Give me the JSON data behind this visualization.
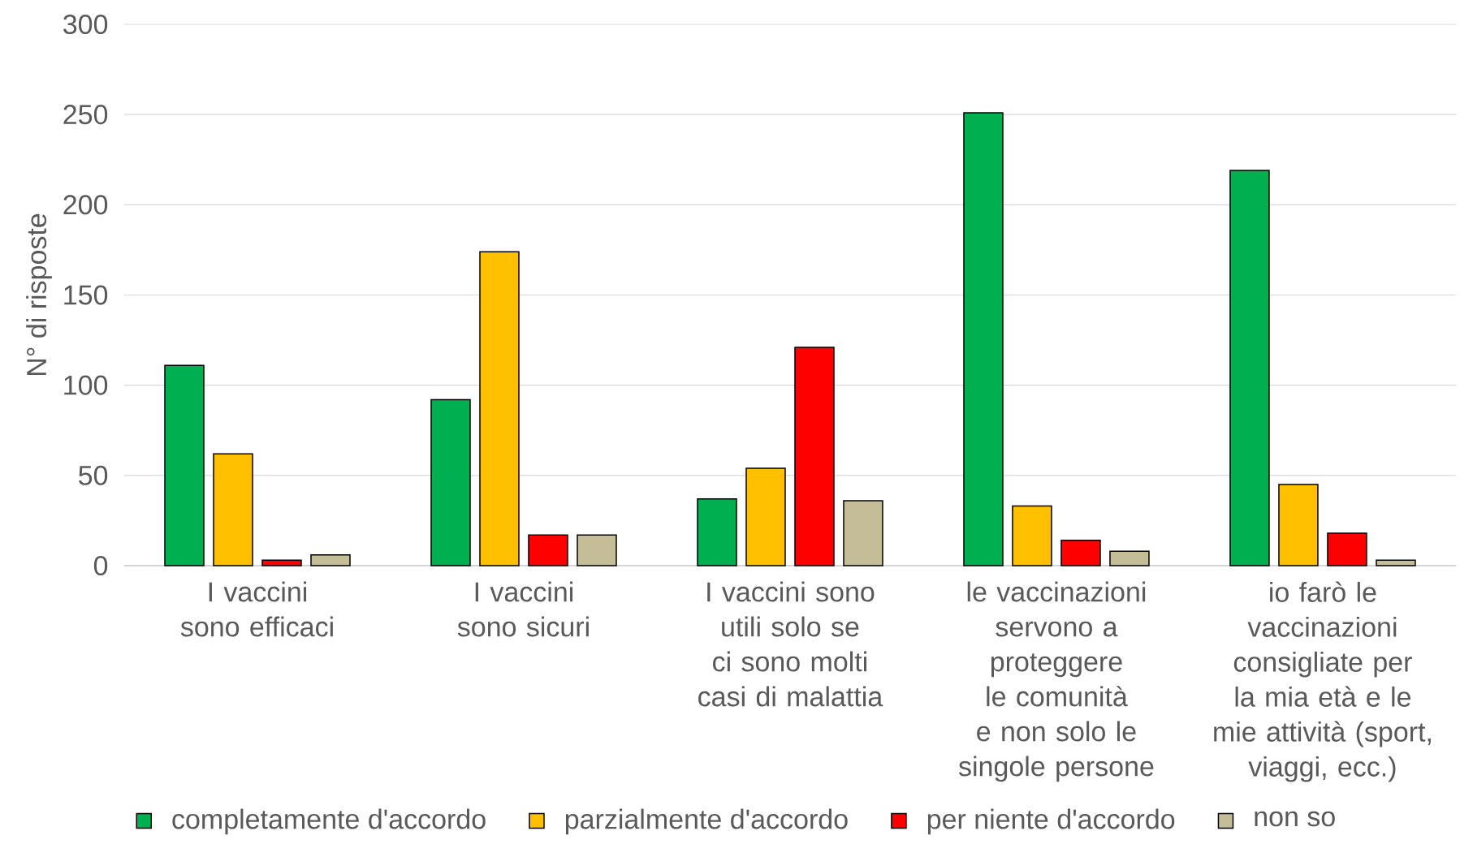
{
  "chart_data": {
    "type": "bar",
    "ylabel": "N° di risposte",
    "categories": [
      "I vaccini sono efficaci",
      "I vaccini sono sicuri",
      "I vaccini sono utili solo se ci sono molti casi di malattia",
      "le vaccinazioni servono a proteggere le comunità e non solo le singole persone",
      "io farò le vaccinazioni consigliate per la mia età e le mie attività (sport, viaggi, ecc.)"
    ],
    "series": [
      {
        "name": "completamente d'accordo",
        "color": "#00b050",
        "values": [
          111,
          92,
          37,
          251,
          219
        ]
      },
      {
        "name": "parzialmente d'accordo",
        "color": "#ffc000",
        "values": [
          62,
          174,
          54,
          33,
          45
        ]
      },
      {
        "name": "per niente d'accordo",
        "color": "#ff0000",
        "values": [
          3,
          17,
          121,
          14,
          18
        ]
      },
      {
        "name": "non so",
        "color": "#c4bd97",
        "values": [
          6,
          17,
          36,
          8,
          3
        ]
      }
    ],
    "ylim": [
      0,
      300
    ],
    "yticks": [
      0,
      50,
      100,
      150,
      200,
      250,
      300
    ],
    "grid": "y",
    "legend": "bottom"
  }
}
